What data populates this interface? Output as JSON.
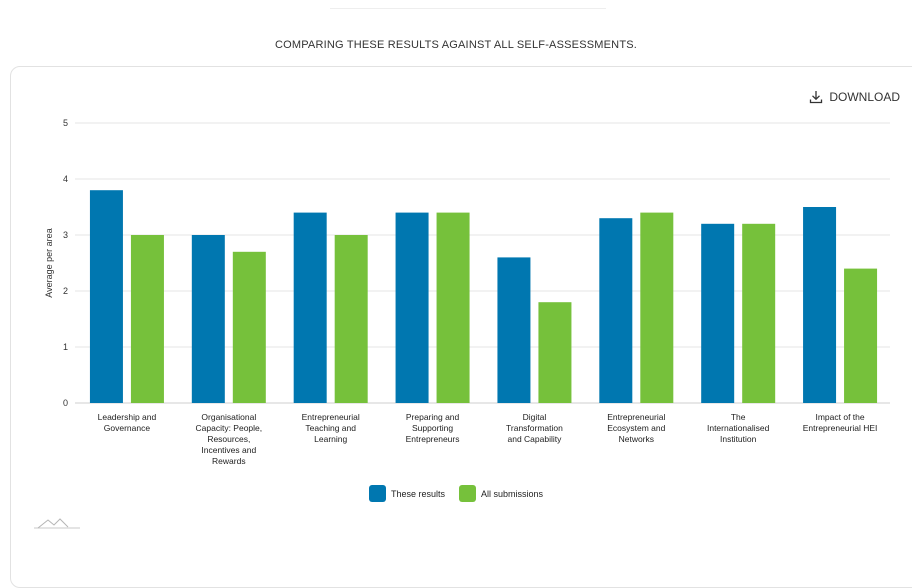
{
  "header": {
    "heading": "COMPARING THESE RESULTS AGAINST ALL SELF-ASSESSMENTS."
  },
  "toolbar": {
    "download_label": "DOWNLOAD"
  },
  "colors": {
    "these_results": "#0077b0",
    "all_submissions": "#76c13b",
    "grid": "#e6e6e6"
  },
  "chart_data": {
    "type": "bar",
    "ylabel": "Average per area",
    "ylim": [
      0,
      5
    ],
    "yticks": [
      "0",
      "1",
      "2",
      "3",
      "4",
      "5"
    ],
    "grid": true,
    "legend_position": "bottom",
    "categories": [
      [
        "Leadership and",
        "Governance"
      ],
      [
        "Organisational",
        "Capacity: People,",
        "Resources,",
        "Incentives and",
        "Rewards"
      ],
      [
        "Entrepreneurial",
        "Teaching and",
        "Learning"
      ],
      [
        "Preparing and",
        "Supporting",
        "Entrepreneurs"
      ],
      [
        "Digital",
        "Transformation",
        "and Capability"
      ],
      [
        "Entrepreneurial",
        "Ecosystem and",
        "Networks"
      ],
      [
        "The",
        "Internationalised",
        "Institution"
      ],
      [
        "Impact of the",
        "Entrepreneurial HEI"
      ]
    ],
    "series": [
      {
        "name": "These results",
        "values": [
          3.8,
          3.0,
          3.4,
          3.4,
          2.6,
          3.3,
          3.2,
          3.5
        ]
      },
      {
        "name": "All submissions",
        "values": [
          3.0,
          2.7,
          3.0,
          3.4,
          1.8,
          3.4,
          3.2,
          2.4
        ]
      }
    ]
  }
}
